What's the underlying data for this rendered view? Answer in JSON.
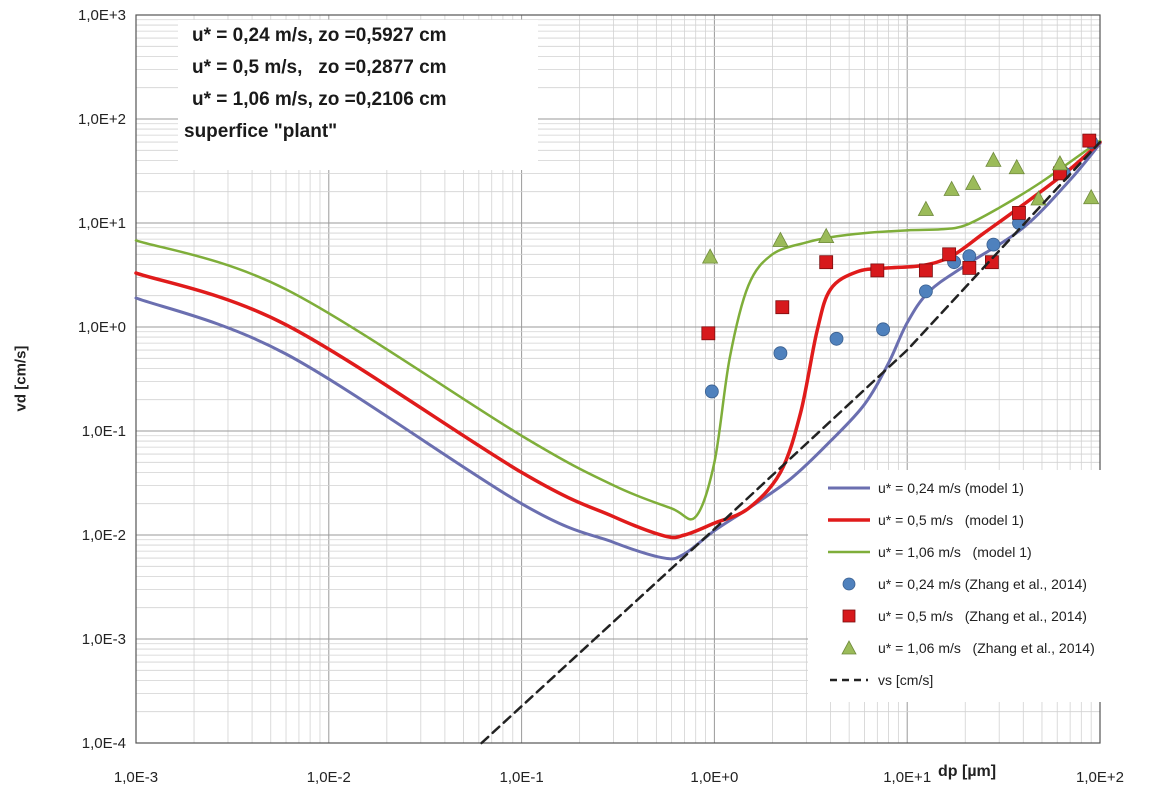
{
  "info_box": {
    "line1": "u* = 0,24 m/s, zo =0,5927 cm",
    "line2": "u* = 0,5 m/s,   zo =0,2877 cm",
    "line3": "u* = 1,06 m/s, zo =0,2106 cm",
    "line4": "superfice \"plant\""
  },
  "chart_data": {
    "type": "line",
    "xlabel": "dp [µm]",
    "ylabel": "vd [cm/s]",
    "x_scale": "log",
    "y_scale": "log",
    "xlim": [
      0.001,
      100
    ],
    "ylim": [
      0.0001,
      1000
    ],
    "x_tick_labels": [
      "1,0E-3",
      "1,0E-2",
      "1,0E-1",
      "1,0E+0",
      "1,0E+1",
      "1,0E+2"
    ],
    "y_tick_labels": [
      "1,0E-4",
      "1,0E-3",
      "1,0E-2",
      "1,0E-1",
      "1,0E+0",
      "1,0E+1",
      "1,0E+2",
      "1,0E+3"
    ],
    "grid": true,
    "legend_position": "bottom-right",
    "series": [
      {
        "name": "u* = 0,24 m/s (model 1)",
        "kind": "line",
        "color": "#6b6fb0",
        "x": [
          0.001,
          0.006,
          0.1,
          0.3,
          0.55,
          0.7,
          1.0,
          1.5,
          2.5,
          4.0,
          6.0,
          8.0,
          10.0,
          13.0,
          20.0,
          40.0,
          70.0,
          100.0
        ],
        "y": [
          1.9,
          0.55,
          0.02,
          0.0085,
          0.006,
          0.0066,
          0.011,
          0.018,
          0.035,
          0.08,
          0.18,
          0.45,
          1.1,
          2.2,
          3.9,
          9.0,
          26.0,
          58.0
        ]
      },
      {
        "name": "u* = 0,5 m/s   (model 1)",
        "kind": "line",
        "color": "#e01b1b",
        "x": [
          0.001,
          0.006,
          0.1,
          0.3,
          0.55,
          0.7,
          1.0,
          1.5,
          2.2,
          2.8,
          3.4,
          4.0,
          5.5,
          8.0,
          12.0,
          17.0,
          25.0,
          40.0,
          70.0,
          100.0
        ],
        "y": [
          3.3,
          1.05,
          0.04,
          0.015,
          0.0098,
          0.01,
          0.013,
          0.018,
          0.04,
          0.15,
          0.9,
          2.3,
          3.4,
          3.7,
          3.9,
          4.8,
          8.0,
          15.0,
          33.0,
          60.0
        ]
      },
      {
        "name": "u* = 1,06 m/s   (model 1)",
        "kind": "line",
        "color": "#7fae3a",
        "x": [
          0.001,
          0.006,
          0.1,
          0.3,
          0.6,
          0.8,
          1.0,
          1.2,
          1.5,
          2.0,
          3.0,
          4.0,
          6.0,
          10.0,
          15.0,
          20.0,
          30.0,
          50.0,
          100.0
        ],
        "y": [
          6.8,
          2.3,
          0.09,
          0.03,
          0.018,
          0.015,
          0.05,
          0.5,
          2.5,
          5.0,
          6.5,
          7.3,
          8.0,
          8.5,
          8.7,
          9.5,
          14.0,
          25.0,
          62.0
        ]
      },
      {
        "name": "u* = 0,24 m/s (Zhang et al., 2014)",
        "kind": "scatter",
        "marker": "circle",
        "color": "#4f81bd",
        "x": [
          0.97,
          2.2,
          4.3,
          7.5,
          12.5,
          17.5,
          21.0,
          28.0,
          38.0,
          65.0,
          90.0
        ],
        "y": [
          0.24,
          0.56,
          0.77,
          0.95,
          2.2,
          4.2,
          4.8,
          6.2,
          10.0,
          30.0,
          60.0
        ]
      },
      {
        "name": "u* = 0,5 m/s   (Zhang et al., 2014)",
        "kind": "scatter",
        "marker": "square",
        "color": "#d7191c",
        "x": [
          0.93,
          2.25,
          3.8,
          7.0,
          12.5,
          16.5,
          21.0,
          27.5,
          38.0,
          62.0,
          88.0
        ],
        "y": [
          0.87,
          1.55,
          4.2,
          3.5,
          3.5,
          5.0,
          3.7,
          4.2,
          12.5,
          30.0,
          62.0
        ]
      },
      {
        "name": "u* = 1,06 m/s   (Zhang et al., 2014)",
        "kind": "scatter",
        "marker": "triangle",
        "color": "#9bbb59",
        "x": [
          0.95,
          2.2,
          3.8,
          12.5,
          17.0,
          22.0,
          28.0,
          37.0,
          48.0,
          62.0,
          90.0
        ],
        "y": [
          4.7,
          6.8,
          7.4,
          13.5,
          21.0,
          24.0,
          40.0,
          34.0,
          17.0,
          37.0,
          17.5
        ]
      },
      {
        "name": "vs [cm/s]",
        "kind": "line",
        "dash": true,
        "color": "#222222",
        "x": [
          0.062,
          1.0,
          10.0,
          100.0
        ],
        "y": [
          0.0001,
          0.0114,
          0.6,
          60.0
        ]
      }
    ]
  }
}
